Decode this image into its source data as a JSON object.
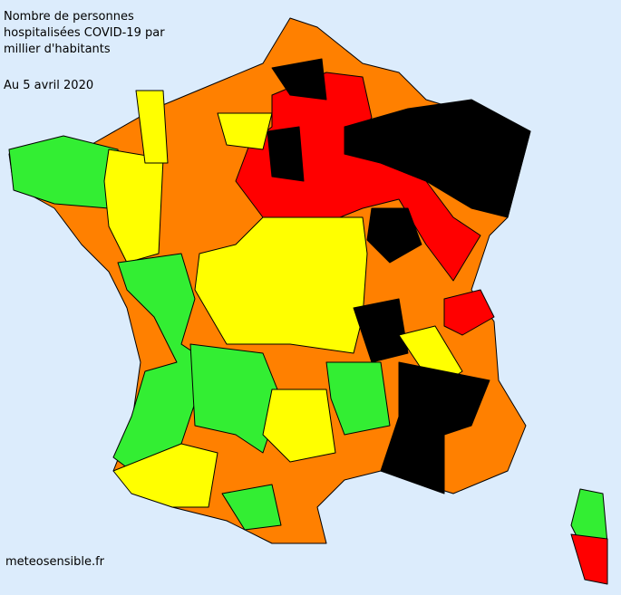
{
  "header": {
    "title_lines": [
      "Nombre de personnes",
      "hospitalisées COVID-19 par",
      "millier d'habitants"
    ],
    "date": "Au 5 avril 2020"
  },
  "footer": {
    "source": "meteosensible.fr"
  }
}
